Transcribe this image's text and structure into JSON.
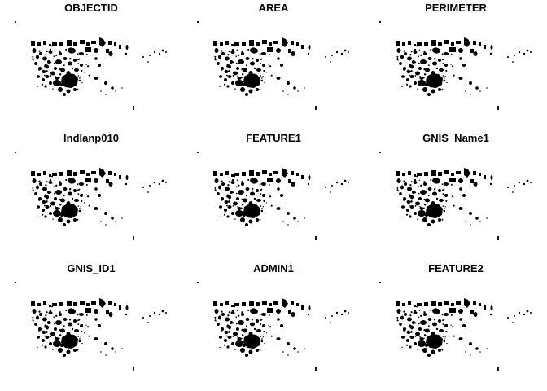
{
  "figure": {
    "panel_titles": [
      "OBJECTID",
      "AREA",
      "PERIMETER",
      "lndlanp010",
      "FEATURE1",
      "GNIS_Name1",
      "GNIS_ID1",
      "ADMIN1",
      "FEATURE2"
    ],
    "feature_fill": "#000000",
    "background": "#ffffff"
  }
}
